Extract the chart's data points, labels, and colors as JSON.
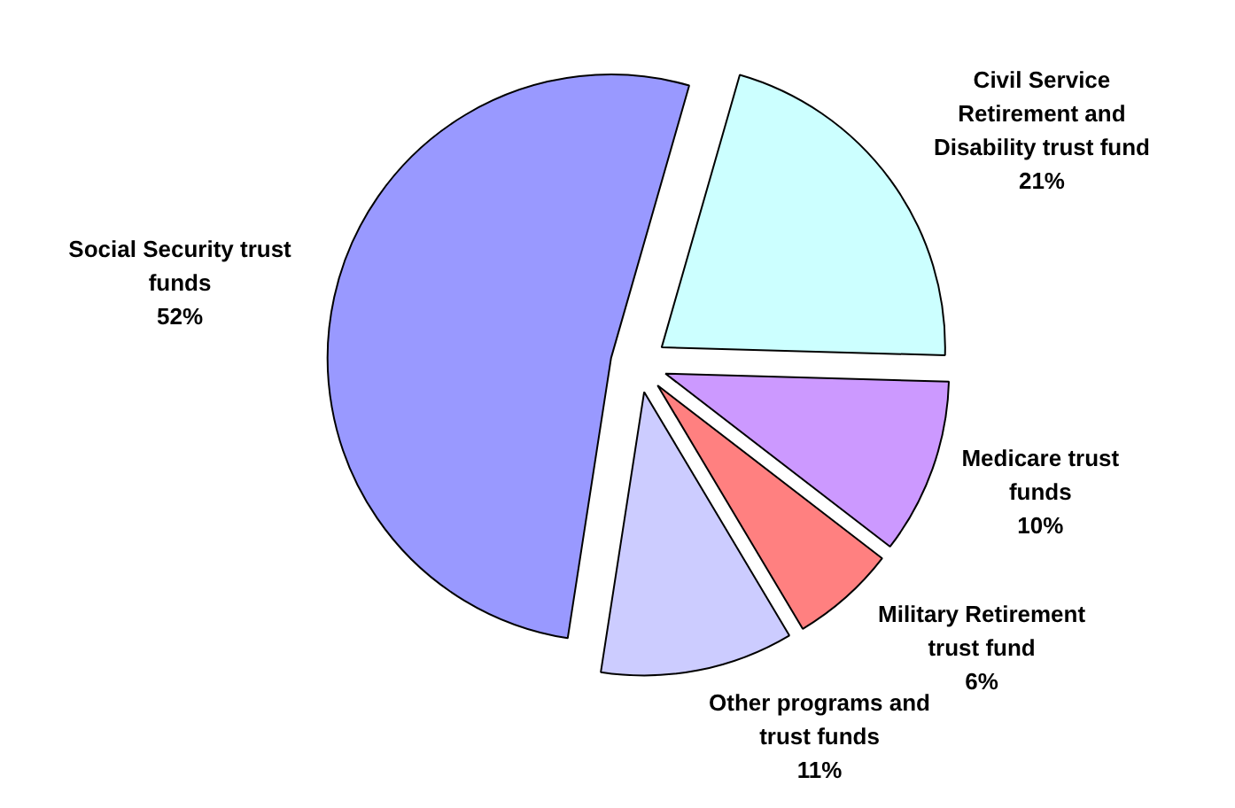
{
  "chart_data": {
    "type": "pie",
    "categories": [
      "Civil Service\nRetirement and\nDisability trust fund",
      "Medicare trust\nfunds",
      "Military Retirement\ntrust fund",
      "Other programs and\ntrust funds",
      "Social Security trust\nfunds"
    ],
    "values": [
      21,
      10,
      6,
      11,
      52
    ],
    "value_labels": [
      "21%",
      "10%",
      "6%",
      "11%",
      "52%"
    ],
    "colors": [
      "#ccffff",
      "#cc99ff",
      "#ff8080",
      "#ccccff",
      "#9999ff"
    ]
  }
}
